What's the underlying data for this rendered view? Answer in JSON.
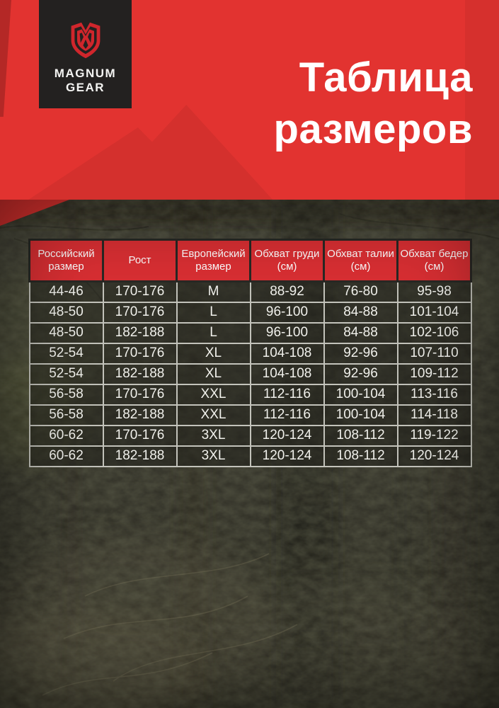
{
  "brand": {
    "line1": "MAGNUM",
    "line2": "GEAR",
    "logo_icon": "magnum-shield-m-icon"
  },
  "title": {
    "line1": "Таблица",
    "line2": "размеров"
  },
  "table": {
    "columns": [
      "Российский размер",
      "Рост",
      "Европейский размер",
      "Обхват груди (см)",
      "Обхват талии (см)",
      "Обхват бедер (см)"
    ],
    "rows": [
      [
        "44-46",
        "170-176",
        "M",
        "88-92",
        "76-80",
        "95-98"
      ],
      [
        "48-50",
        "170-176",
        "L",
        "96-100",
        "84-88",
        "101-104"
      ],
      [
        "48-50",
        "182-188",
        "L",
        "96-100",
        "84-88",
        "102-106"
      ],
      [
        "52-54",
        "170-176",
        "XL",
        "104-108",
        "92-96",
        "107-110"
      ],
      [
        "52-54",
        "182-188",
        "XL",
        "104-108",
        "92-96",
        "109-112"
      ],
      [
        "56-58",
        "170-176",
        "XXL",
        "112-116",
        "100-104",
        "113-116"
      ],
      [
        "56-58",
        "182-188",
        "XXL",
        "112-116",
        "100-104",
        "114-118"
      ],
      [
        "60-62",
        "170-176",
        "3XL",
        "120-124",
        "108-112",
        "119-122"
      ],
      [
        "60-62",
        "182-188",
        "3XL",
        "120-124",
        "108-112",
        "120-124"
      ]
    ]
  },
  "colors": {
    "accent_red": "#e23330",
    "header_red": "#da2f33",
    "logo_bg": "#232120",
    "table_text": "#f1f1ec"
  }
}
